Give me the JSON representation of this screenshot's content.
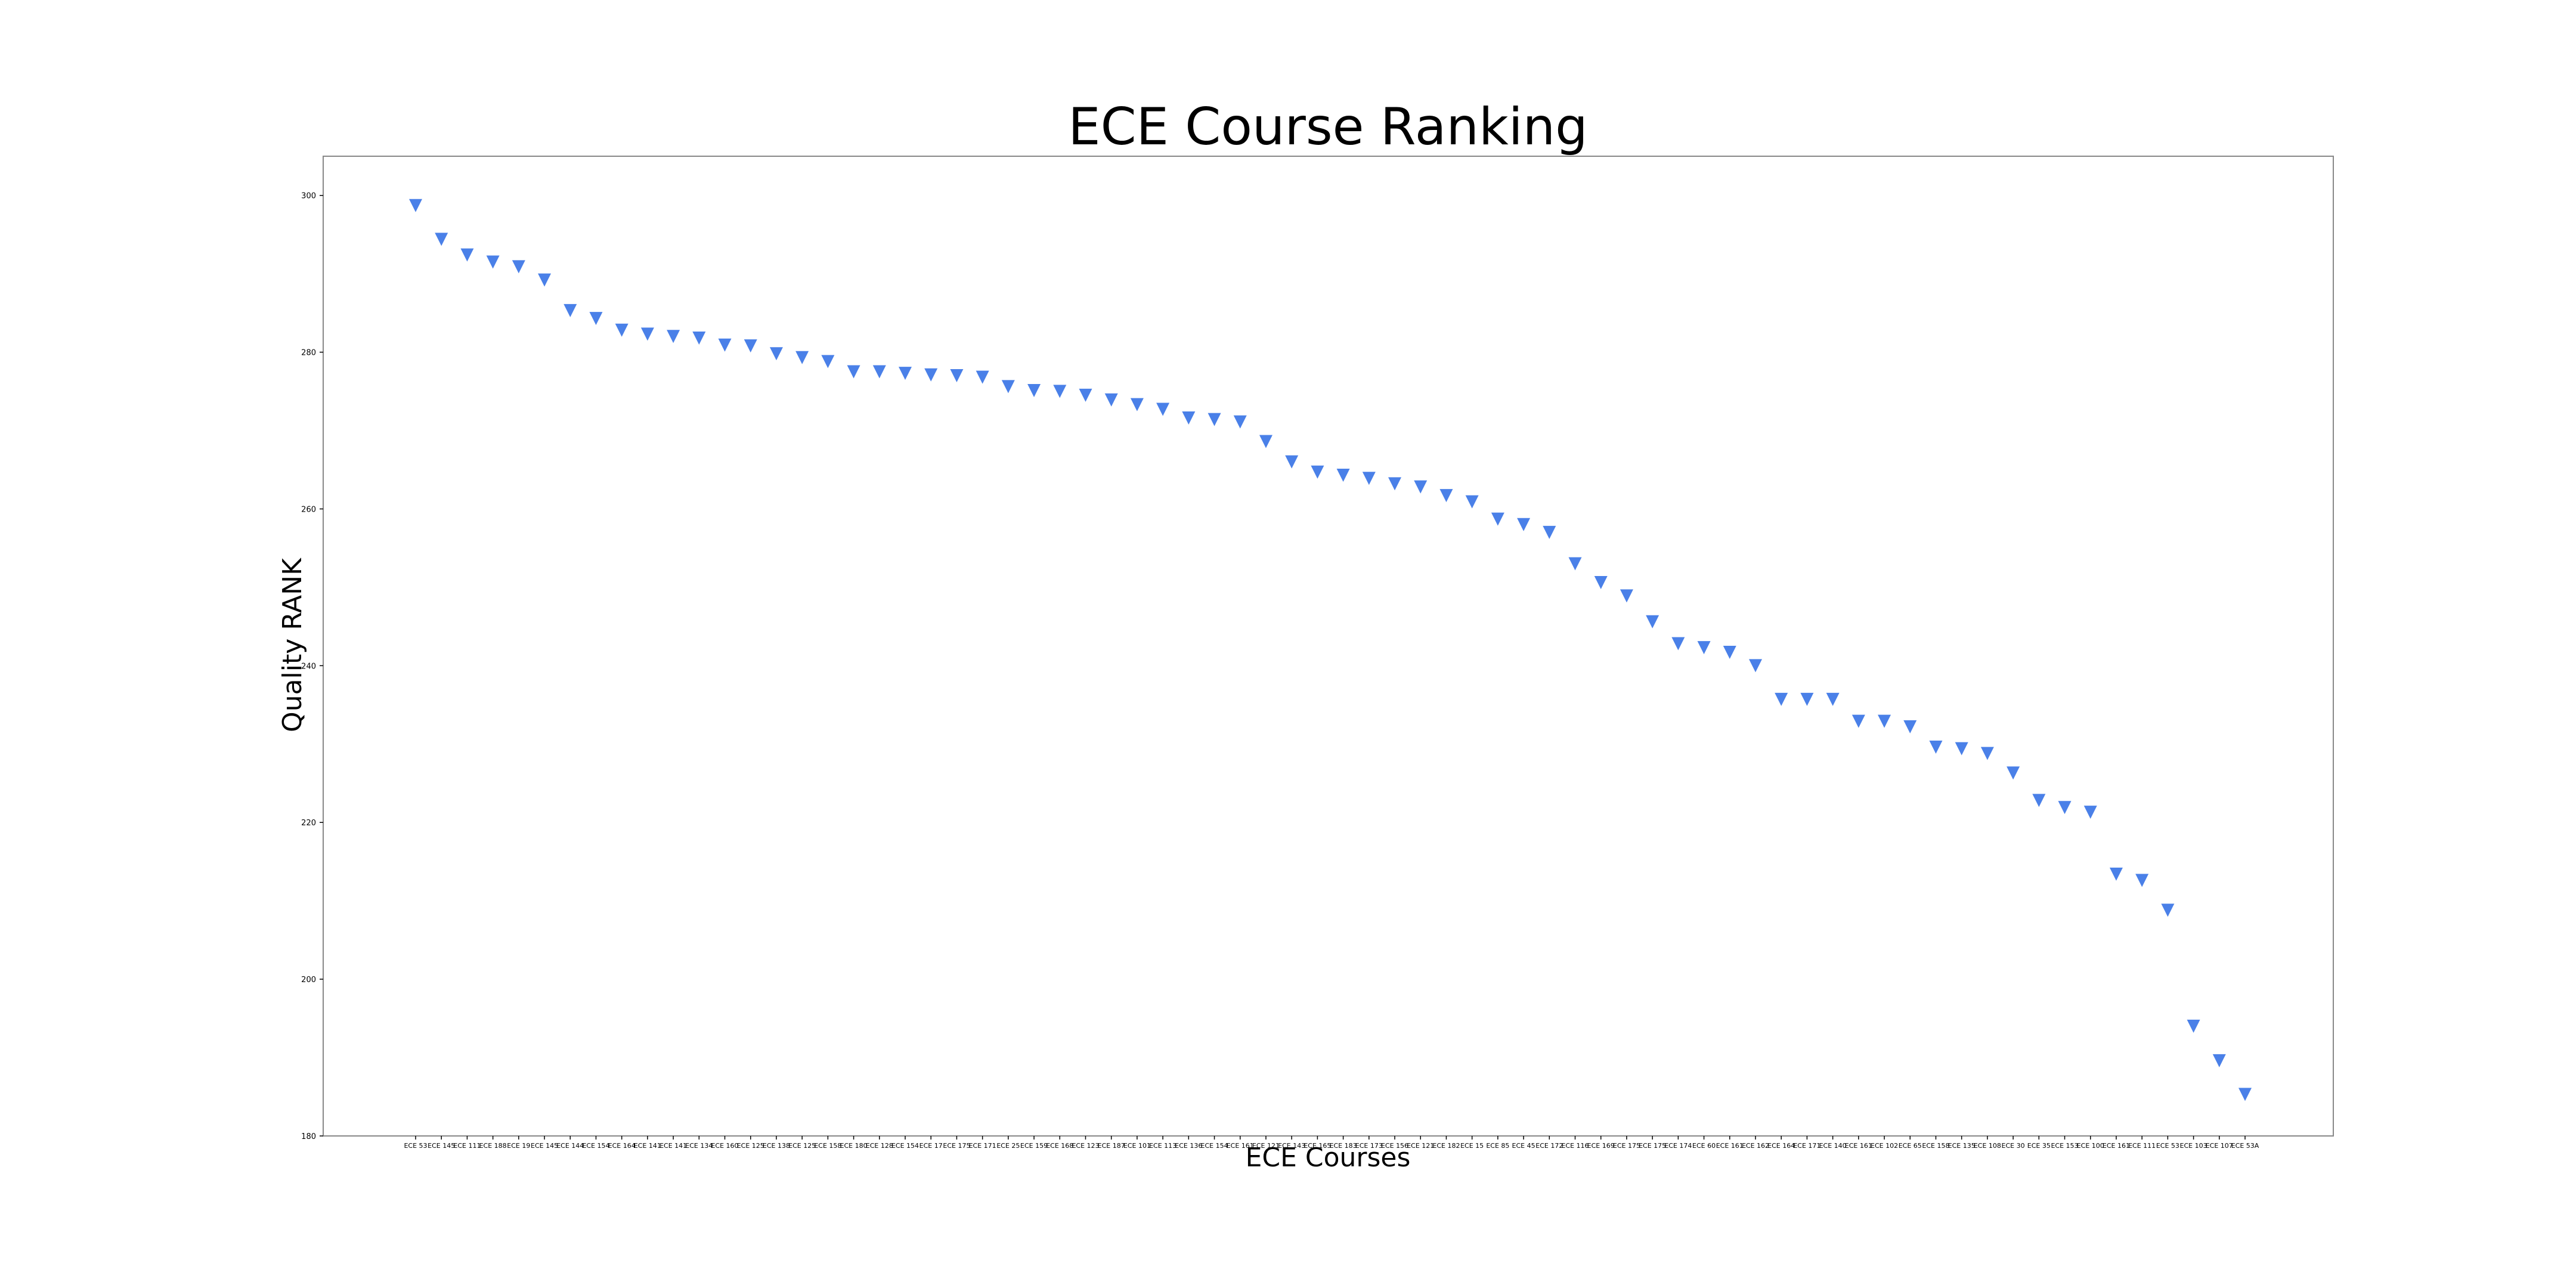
{
  "chart_data": {
    "type": "scatter",
    "title": "ECE Course Ranking",
    "xlabel": "ECE Courses",
    "ylabel": "Quality RANK",
    "marker": "triangle-down",
    "color": "#4a80e8",
    "ylim": [
      180,
      305
    ],
    "yticks": [
      180,
      200,
      220,
      240,
      260,
      280,
      300
    ],
    "grid": false,
    "legend": "none",
    "categories": [
      "ECE 53",
      "ECE 145",
      "ECE 111",
      "ECE 188",
      "ECE 19",
      "ECE 145",
      "ECE 144",
      "ECE 154",
      "ECE 164",
      "ECE 141",
      "ECE 141",
      "ECE 134",
      "ECE 160",
      "ECE 125",
      "ECE 138",
      "ECE 125",
      "ECE 158",
      "ECE 180",
      "ECE 128",
      "ECE 154",
      "ECE 17",
      "ECE 175",
      "ECE 171",
      "ECE 25",
      "ECE 159",
      "ECE 168",
      "ECE 123",
      "ECE 187",
      "ECE 101",
      "ECE 113",
      "ECE 136",
      "ECE 154",
      "ECE 161",
      "ECE 121",
      "ECE 143",
      "ECE 165",
      "ECE 183",
      "ECE 173",
      "ECE 156",
      "ECE 121",
      "ECE 182",
      "ECE 15",
      "ECE 85",
      "ECE 45",
      "ECE 172",
      "ECE 116",
      "ECE 169",
      "ECE 175",
      "ECE 175",
      "ECE 174",
      "ECE 60",
      "ECE 161",
      "ECE 162",
      "ECE 164",
      "ECE 171",
      "ECE 140",
      "ECE 161",
      "ECE 102",
      "ECE 65",
      "ECE 158",
      "ECE 135",
      "ECE 108",
      "ECE 30",
      "ECE 35",
      "ECE 153",
      "ECE 100",
      "ECE 161",
      "ECE 111",
      "ECE 53",
      "ECE 103",
      "ECE 107",
      "ECE 53A"
    ],
    "values": [
      298.7,
      294.4,
      292.4,
      291.5,
      290.9,
      289.2,
      285.3,
      284.3,
      282.8,
      282.3,
      282.0,
      281.8,
      280.9,
      280.8,
      279.8,
      279.3,
      278.8,
      277.5,
      277.5,
      277.3,
      277.1,
      277.0,
      276.8,
      275.6,
      275.1,
      275.0,
      274.5,
      273.9,
      273.3,
      272.7,
      271.6,
      271.4,
      271.1,
      268.6,
      266.0,
      264.7,
      264.3,
      263.9,
      263.2,
      262.8,
      261.7,
      260.9,
      258.7,
      258.0,
      257.0,
      253.0,
      250.6,
      248.9,
      245.6,
      242.8,
      242.3,
      241.7,
      240.0,
      235.7,
      235.7,
      235.7,
      232.9,
      232.9,
      232.2,
      229.6,
      229.4,
      228.8,
      226.3,
      222.8,
      221.9,
      221.3,
      213.4,
      212.6,
      208.8,
      194.0,
      189.6,
      185.3
    ]
  }
}
